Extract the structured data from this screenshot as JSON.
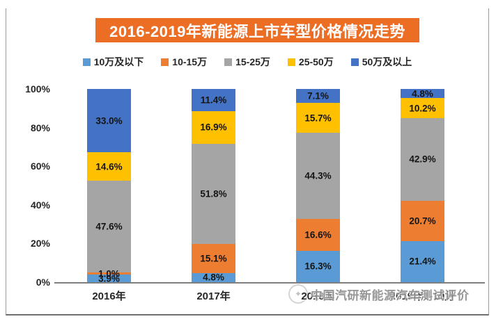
{
  "title_banner": {
    "text": "2016-2019年新能源上市车型价格情况走势",
    "bg_color": "#EC6E24",
    "text_color": "#FFFFFF"
  },
  "watermark": {
    "text": "中国汽研新能源汽车测试评价",
    "logo": "circular-badge"
  },
  "chart_data": {
    "type": "bar",
    "variant": "100-percent-stacked-column",
    "title": "2016-2019年新能源上市车型价格情况走势",
    "categories": [
      "2016年",
      "2017年",
      "2018年",
      "2019年1-10月"
    ],
    "series": [
      {
        "name": "10万及以下",
        "color": "#5B9BD5",
        "values": [
          3.9,
          4.8,
          16.3,
          21.4
        ]
      },
      {
        "name": "10-15万",
        "color": "#ED7D31",
        "values": [
          1.0,
          15.1,
          16.6,
          20.7
        ]
      },
      {
        "name": "15-25万",
        "color": "#A5A5A5",
        "values": [
          47.6,
          51.8,
          44.3,
          42.9
        ]
      },
      {
        "name": "25-50万",
        "color": "#FFC000",
        "values": [
          14.6,
          16.9,
          15.7,
          10.2
        ]
      },
      {
        "name": "50万及以上",
        "color": "#4472C4",
        "values": [
          33.0,
          11.4,
          7.1,
          4.8
        ]
      }
    ],
    "y_ticks_top_to_bottom": [
      "100%",
      "80%",
      "60%",
      "40%",
      "20%",
      "0%"
    ],
    "ylim": [
      0,
      100
    ],
    "grid": false,
    "legend_position": "top",
    "data_label_format": "one-decimal-percent",
    "axis_line_color": "#7f7f7f"
  }
}
